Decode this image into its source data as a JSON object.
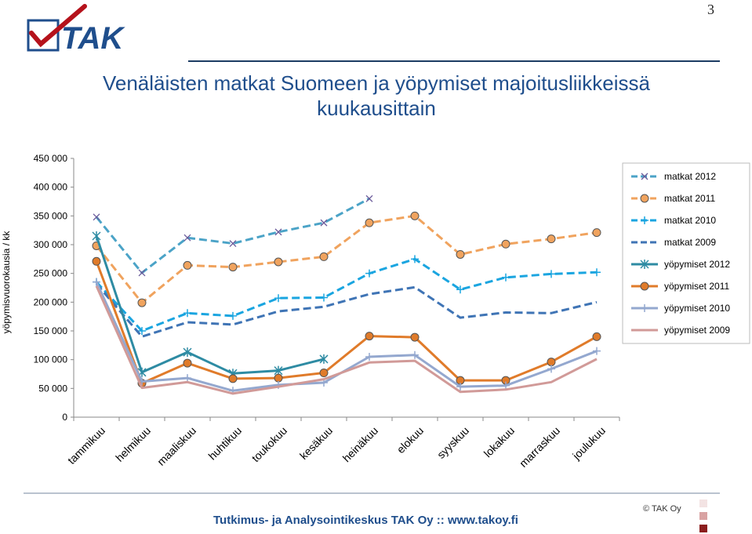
{
  "header": {
    "logo_text": "TAK",
    "page_number": "3",
    "title_line1": "Venäläisten matkat Suomeen ja yöpymiset majoitusliikkeissä",
    "title_line2": "kuukausittain"
  },
  "footer": {
    "text": "Tutkimus- ja Analysointikeskus TAK Oy  ::  www.takoy.fi",
    "copyright": "© TAK Oy"
  },
  "colors": {
    "brand_blue": "#1f4e8c",
    "logo_red": "#b5121b",
    "squares": [
      "#f3e3e3",
      "#d9a3a3",
      "#8b1d1d"
    ]
  },
  "chart_data": {
    "type": "line",
    "title": "Venäläisten matkat Suomeen ja yöpymiset majoitusliikkeissä kuukausittain",
    "xlabel": "",
    "ylabel": "yöpymisvuorokausia / kk",
    "ylim": [
      0,
      450000
    ],
    "yticks": [
      0,
      50000,
      100000,
      150000,
      200000,
      250000,
      300000,
      350000,
      400000,
      450000
    ],
    "ytick_labels": [
      "0",
      "50 000",
      "100 000",
      "150 000",
      "200 000",
      "250 000",
      "300 000",
      "350 000",
      "400 000",
      "450 000"
    ],
    "grid": false,
    "legend_position": "right",
    "categories": [
      "tammikuu",
      "helmikuu",
      "maaliskuu",
      "huhtikuu",
      "toukokuu",
      "kesäkuu",
      "heinäkuu",
      "elokuu",
      "syyskuu",
      "lokakuu",
      "marraskuu",
      "joulukuu"
    ],
    "series": [
      {
        "name": "matkat 2012",
        "color": "#4ba3c7",
        "dash": true,
        "marker": "x",
        "values": [
          348000,
          251000,
          312000,
          302000,
          322000,
          338000,
          380000,
          null,
          null,
          null,
          null,
          null
        ]
      },
      {
        "name": "matkat 2011",
        "color": "#f0a35e",
        "dash": true,
        "marker": "circle",
        "values": [
          298000,
          199000,
          264000,
          261000,
          270000,
          279000,
          338000,
          350000,
          283000,
          301000,
          310000,
          321000
        ]
      },
      {
        "name": "matkat 2010",
        "color": "#1aa5e0",
        "dash": true,
        "marker": "plus",
        "values": [
          235000,
          150000,
          181000,
          176000,
          207000,
          208000,
          250000,
          275000,
          222000,
          243000,
          249000,
          252000
        ]
      },
      {
        "name": "matkat 2009",
        "color": "#3f74b5",
        "dash": true,
        "marker": "none",
        "values": [
          232000,
          140000,
          165000,
          161000,
          184000,
          192000,
          214000,
          226000,
          173000,
          182000,
          181000,
          200000
        ]
      },
      {
        "name": "yöpymiset 2012",
        "color": "#2e8ba3",
        "dash": false,
        "marker": "star",
        "values": [
          315000,
          78000,
          113000,
          76000,
          81000,
          101000,
          null,
          null,
          null,
          null,
          null,
          null
        ]
      },
      {
        "name": "yöpymiset 2011",
        "color": "#e07b2a",
        "dash": false,
        "marker": "circle",
        "values": [
          271000,
          59000,
          94000,
          67000,
          68000,
          77000,
          141000,
          139000,
          64000,
          64000,
          96000,
          140000
        ]
      },
      {
        "name": "yöpymiset 2010",
        "color": "#94a8cf",
        "dash": false,
        "marker": "plus",
        "values": [
          235000,
          62000,
          68000,
          46000,
          56000,
          60000,
          105000,
          108000,
          53000,
          55000,
          84000,
          115000
        ]
      },
      {
        "name": "yöpymiset 2009",
        "color": "#d19a98",
        "dash": false,
        "marker": "none",
        "values": [
          228000,
          51000,
          61000,
          41000,
          53000,
          66000,
          95000,
          98000,
          44000,
          48000,
          61000,
          101000
        ]
      }
    ]
  }
}
